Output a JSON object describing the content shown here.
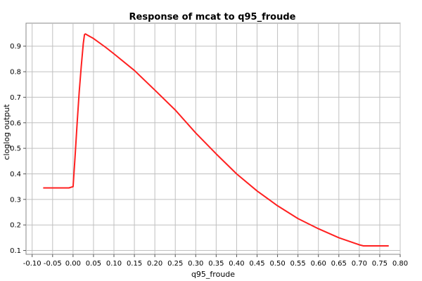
{
  "chart_data": {
    "type": "line",
    "title": "Response of mcat to q95_froude",
    "xlabel": "q95_froude",
    "ylabel": "cloglog output",
    "xlim": [
      -0.115,
      0.8
    ],
    "ylim": [
      0.085,
      0.99
    ],
    "x_ticks": [
      -0.1,
      -0.05,
      0.0,
      0.05,
      0.1,
      0.15,
      0.2,
      0.25,
      0.3,
      0.35,
      0.4,
      0.45,
      0.5,
      0.55,
      0.6,
      0.65,
      0.7,
      0.75,
      0.8
    ],
    "x_tick_labels": [
      "-0.10",
      "-0.05",
      "0.00",
      "0.05",
      "0.10",
      "0.15",
      "0.20",
      "0.25",
      "0.30",
      "0.35",
      "0.40",
      "0.45",
      "0.50",
      "0.55",
      "0.60",
      "0.65",
      "0.70",
      "0.75",
      "0.80"
    ],
    "y_ticks": [
      0.1,
      0.2,
      0.3,
      0.4,
      0.5,
      0.6,
      0.7,
      0.8,
      0.9
    ],
    "y_tick_labels": [
      "0.1",
      "0.2",
      "0.3",
      "0.4",
      "0.5",
      "0.6",
      "0.7",
      "0.8",
      "0.9"
    ],
    "grid": true,
    "series": [
      {
        "color": "#ff2020",
        "x": [
          -0.073,
          -0.04,
          -0.01,
          0.0,
          0.005,
          0.01,
          0.015,
          0.02,
          0.025,
          0.028,
          0.03,
          0.05,
          0.08,
          0.1,
          0.15,
          0.2,
          0.25,
          0.3,
          0.35,
          0.4,
          0.45,
          0.5,
          0.55,
          0.6,
          0.65,
          0.7,
          0.71,
          0.74,
          0.772
        ],
        "y": [
          0.345,
          0.345,
          0.345,
          0.35,
          0.47,
          0.6,
          0.72,
          0.82,
          0.91,
          0.945,
          0.948,
          0.93,
          0.895,
          0.87,
          0.805,
          0.728,
          0.65,
          0.56,
          0.478,
          0.4,
          0.333,
          0.275,
          0.225,
          0.185,
          0.15,
          0.122,
          0.118,
          0.118,
          0.118
        ]
      }
    ]
  }
}
